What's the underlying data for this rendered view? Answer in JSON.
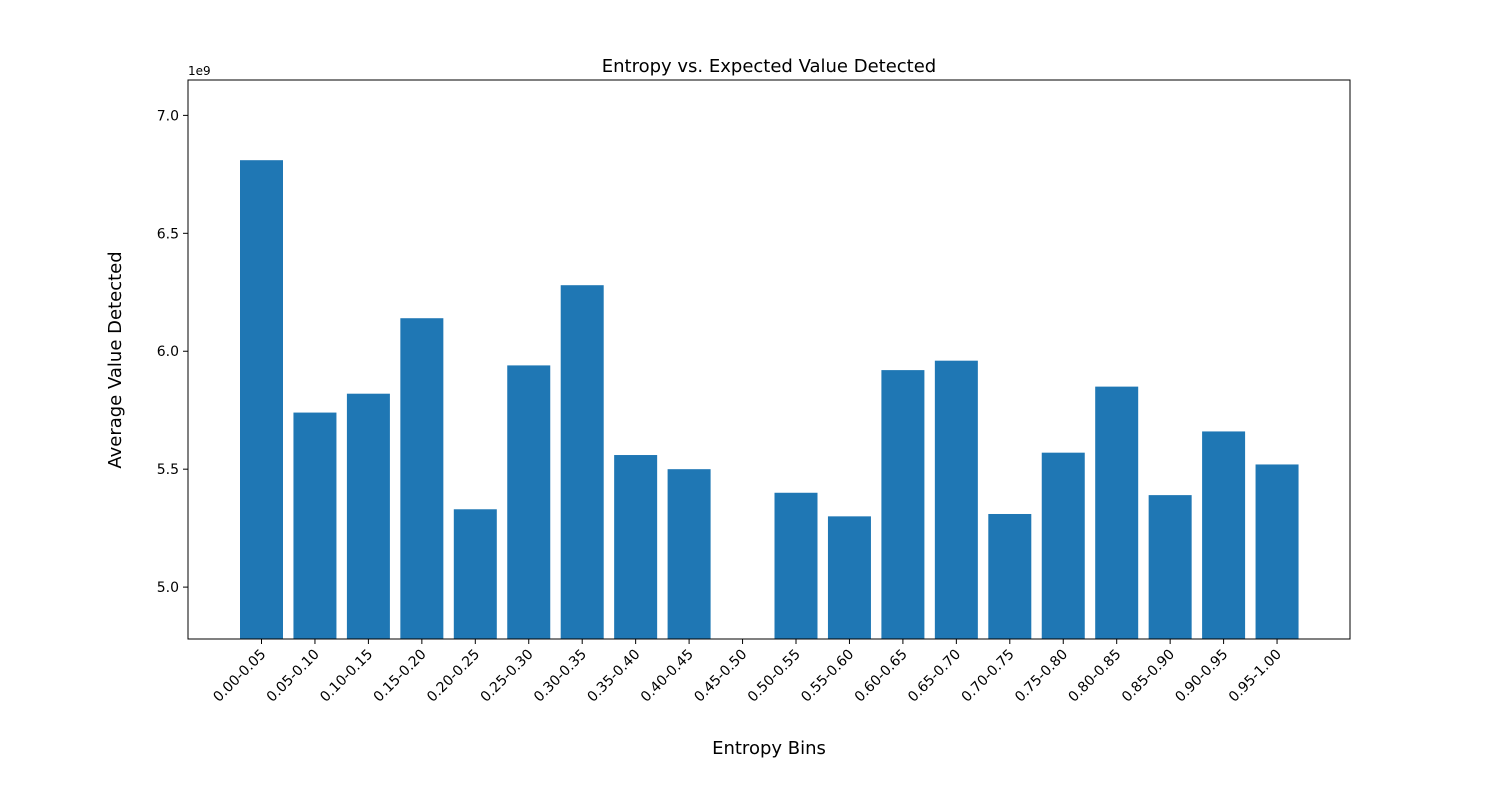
{
  "chart_data": {
    "type": "bar",
    "title": "Entropy vs. Expected Value Detected",
    "xlabel": "Entropy Bins",
    "ylabel": "Average Value Detected",
    "y_offset_label": "1e9",
    "y_scale": 1000000000,
    "ylim": [
      4.78,
      7.15
    ],
    "yticks": [
      5.0,
      5.5,
      6.0,
      6.5,
      7.0
    ],
    "ytick_labels": [
      "5.0",
      "5.5",
      "6.0",
      "6.5",
      "7.0"
    ],
    "grid": false,
    "legend": "none",
    "bar_color": "#1f77b4",
    "categories": [
      "0.00-0.05",
      "0.05-0.10",
      "0.10-0.15",
      "0.15-0.20",
      "0.20-0.25",
      "0.25-0.30",
      "0.30-0.35",
      "0.35-0.40",
      "0.40-0.45",
      "0.45-0.50",
      "0.50-0.55",
      "0.55-0.60",
      "0.60-0.65",
      "0.65-0.70",
      "0.70-0.75",
      "0.75-0.80",
      "0.80-0.85",
      "0.85-0.90",
      "0.90-0.95",
      "0.95-1.00"
    ],
    "values": [
      6.81,
      5.74,
      5.82,
      6.14,
      5.33,
      5.94,
      6.28,
      5.56,
      5.5,
      null,
      5.4,
      5.3,
      5.92,
      5.96,
      5.31,
      5.57,
      5.85,
      5.39,
      5.66,
      5.52
    ]
  }
}
